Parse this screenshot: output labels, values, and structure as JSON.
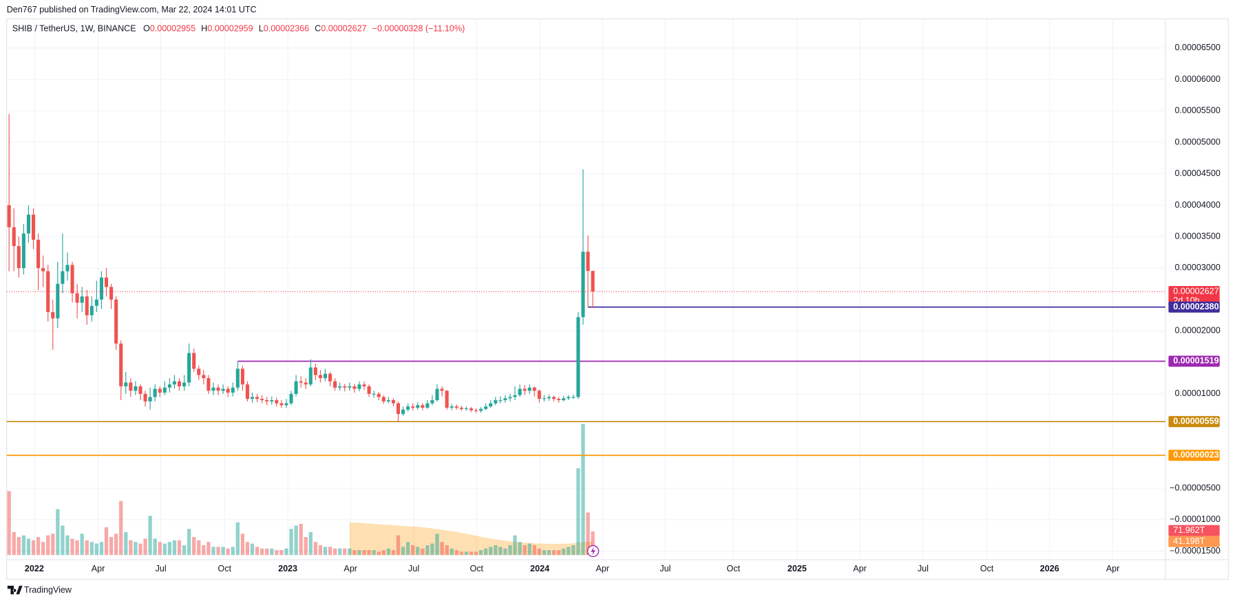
{
  "chart_data": {
    "type": "candlestick",
    "publisher": "Den767 published on TradingView.com, Mar 22, 2024 14:01 UTC",
    "title": "SHIB / TetherUS, 1W, BINANCE",
    "legend_values": [
      {
        "key": "O",
        "value": "0.00002955"
      },
      {
        "key": "H",
        "value": "0.00002959"
      },
      {
        "key": "L",
        "value": "0.00002366"
      },
      {
        "key": "C",
        "value": "0.00002627"
      }
    ],
    "change": "−0.00000328 (−11.10%)",
    "up_color": "#26a69a",
    "down_color": "#ef5350",
    "open": [
      4e-05,
      3.65e-05,
      3.35e-05,
      3e-05,
      3.55e-05,
      3.85e-05,
      3.45e-05,
      3e-05,
      2.95e-05,
      2.3e-05,
      2.2e-05,
      2.75e-05,
      2.95e-05,
      3.05e-05,
      2.6e-05,
      2.45e-05,
      2.55e-05,
      2.25e-05,
      2.4e-05,
      2.5e-05,
      2.85e-05,
      2.7e-05,
      2.5e-05,
      1.8e-05,
      1.12e-05,
      1.18e-05,
      1.05e-05,
      1.12e-05,
      1e-05,
      8.8e-06,
      9.5e-06,
      1.08e-05,
      1.02e-05,
      1.1e-05,
      1.15e-05,
      1.2e-05,
      1.12e-05,
      1.18e-05,
      1.65e-05,
      1.4e-05,
      1.3e-05,
      1.25e-05,
      1.05e-05,
      1.1e-05,
      1.05e-05,
      1.08e-05,
      1.02e-05,
      1.1e-05,
      1.4e-05,
      1.15e-05,
      9.2e-06,
      9.5e-06,
      9.2e-06,
      9e-06,
      8.8e-06,
      9e-06,
      8.5e-06,
      8.2e-06,
      8.5e-06,
      1e-05,
      1.2e-05,
      1.18e-05,
      1.15e-05,
      1.42e-05,
      1.3e-05,
      1.25e-05,
      1.32e-05,
      1.2e-05,
      1.1e-05,
      1.12e-05,
      1.1e-05,
      1.12e-05,
      1.08e-05,
      1.15e-05,
      1.12e-05,
      1e-05,
      1e-05,
      9.5e-06,
      8.8e-06,
      9e-06,
      8.5e-06,
      6.8e-06,
      7.5e-06,
      8e-06,
      7.8e-06,
      8.2e-06,
      7.8e-06,
      8.5e-06,
      9e-06,
      1.08e-05,
      1.05e-05,
      7.8e-06,
      8e-06,
      7.8e-06,
      7.6e-06,
      7.7e-06,
      7.4e-06,
      7.3e-06,
      7.6e-06,
      8e-06,
      8.5e-06,
      9e-06,
      9e-06,
      9.3e-06,
      9.5e-06,
      9.8e-06,
      1.08e-05,
      1.05e-05,
      1.1e-05,
      1.05e-05,
      9.2e-06,
      9.3e-06,
      9.5e-06,
      9.2e-06,
      9e-06,
      9.3e-06,
      9.5e-06,
      9.5e-06,
      2.22e-05,
      3.26e-05,
      2.955e-05
    ],
    "high": [
      5.45e-05,
      3.95e-05,
      3.5e-05,
      3.7e-05,
      4e-05,
      3.95e-05,
      3.55e-05,
      3.2e-05,
      3.05e-05,
      2.5e-05,
      3.1e-05,
      3.55e-05,
      3.25e-05,
      3.1e-05,
      2.75e-05,
      2.7e-05,
      2.65e-05,
      2.55e-05,
      2.8e-05,
      2.95e-05,
      3e-05,
      2.75e-05,
      2.55e-05,
      1.85e-05,
      1.35e-05,
      1.25e-05,
      1.2e-05,
      1.15e-05,
      1.05e-05,
      1.1e-05,
      1.15e-05,
      1.12e-05,
      1.2e-05,
      1.25e-05,
      1.3e-05,
      1.25e-05,
      1.3e-05,
      1.8e-05,
      1.72e-05,
      1.45e-05,
      1.38e-05,
      1.3e-05,
      1.18e-05,
      1.15e-05,
      1.15e-05,
      1.12e-05,
      1.18e-05,
      1.52e-05,
      1.45e-05,
      1.2e-05,
      1.02e-05,
      1e-05,
      9.8e-06,
      9.5e-06,
      9.6e-06,
      9.4e-06,
      9e-06,
      9.2e-06,
      1.05e-05,
      1.3e-05,
      1.28e-05,
      1.25e-05,
      1.55e-05,
      1.48e-05,
      1.38e-05,
      1.4e-05,
      1.35e-05,
      1.25e-05,
      1.18e-05,
      1.16e-05,
      1.18e-05,
      1.16e-05,
      1.2e-05,
      1.2e-05,
      1.15e-05,
      1.05e-05,
      1.03e-05,
      9.8e-06,
      9.5e-06,
      9.3e-06,
      8.8e-06,
      8e-06,
      8.5e-06,
      8.5e-06,
      8.7e-06,
      8.5e-06,
      9e-06,
      9.8e-06,
      1.15e-05,
      1.12e-05,
      1.06e-05,
      8.4e-06,
      8.3e-06,
      8.1e-06,
      8e-06,
      7.9e-06,
      7.7e-06,
      7.9e-06,
      8.5e-06,
      9e-06,
      9.5e-06,
      9.6e-06,
      9.8e-06,
      1e-05,
      1.12e-05,
      1.15e-05,
      1.14e-05,
      1.15e-05,
      1.12e-05,
      1.07e-05,
      9.8e-06,
      9.9e-06,
      9.7e-06,
      9.5e-06,
      9.7e-06,
      9.8e-06,
      9.9e-06,
      2.3e-05,
      4.57e-05,
      3.52e-05,
      2.959e-05
    ],
    "low": [
      2.95e-05,
      2.95e-05,
      2.85e-05,
      2.9e-05,
      3.4e-05,
      3.3e-05,
      2.65e-05,
      2.7e-05,
      2.15e-05,
      1.7e-05,
      2.05e-05,
      2.6e-05,
      2.8e-05,
      2.45e-05,
      2.2e-05,
      2.3e-05,
      2.1e-05,
      2.15e-05,
      2.3e-05,
      2.35e-05,
      2.55e-05,
      2.35e-05,
      1.7e-05,
      9e-06,
      1e-05,
      9.5e-06,
      9.8e-06,
      9e-06,
      8e-06,
      7.5e-06,
      8.8e-06,
      9.5e-06,
      9.8e-06,
      1.02e-05,
      1.08e-05,
      1.05e-05,
      1.05e-05,
      1.12e-05,
      1.35e-05,
      1.22e-05,
      1.15e-05,
      1e-05,
      9.8e-06,
      9.8e-06,
      1e-05,
      9.5e-06,
      9.6e-06,
      1.05e-05,
      1.05e-05,
      8.8e-06,
      8.6e-06,
      8.7e-06,
      8.5e-06,
      8.2e-06,
      8.3e-06,
      8e-06,
      7.8e-06,
      7.8e-06,
      8.2e-06,
      9.6e-06,
      1.1e-05,
      1.08e-05,
      1.12e-05,
      1.22e-05,
      1.18e-05,
      1.2e-05,
      1.12e-05,
      1.05e-05,
      1.05e-05,
      1.04e-05,
      1.05e-05,
      1.02e-05,
      1.04e-05,
      1.06e-05,
      9.5e-06,
      9.4e-06,
      9e-06,
      8.4e-06,
      8.5e-06,
      8e-06,
      5.5e-06,
      6.5e-06,
      7.2e-06,
      7.4e-06,
      7.5e-06,
      7.4e-06,
      7.6e-06,
      8.2e-06,
      8.8e-06,
      9.6e-06,
      7.5e-06,
      7.4e-06,
      7.5e-06,
      7.3e-06,
      7.3e-06,
      7.1e-06,
      7e-06,
      7e-06,
      7.4e-06,
      7.8e-06,
      8.2e-06,
      8.5e-06,
      8.6e-06,
      8.8e-06,
      9e-06,
      9.5e-06,
      9.8e-06,
      1e-05,
      9.6e-06,
      8.6e-06,
      8.8e-06,
      8.9e-06,
      8.8e-06,
      8.6e-06,
      8.8e-06,
      9e-06,
      9.2e-06,
      9.2e-06,
      2.1e-05,
      2.38e-05,
      2.366e-05
    ],
    "close": [
      3.65e-05,
      3.35e-05,
      3e-05,
      3.55e-05,
      3.85e-05,
      3.45e-05,
      3e-05,
      2.95e-05,
      2.3e-05,
      2.2e-05,
      2.75e-05,
      2.95e-05,
      3.05e-05,
      2.6e-05,
      2.45e-05,
      2.55e-05,
      2.25e-05,
      2.4e-05,
      2.5e-05,
      2.85e-05,
      2.7e-05,
      2.5e-05,
      1.8e-05,
      1.12e-05,
      1.18e-05,
      1.05e-05,
      1.12e-05,
      1e-05,
      8.8e-06,
      9.5e-06,
      1.08e-05,
      1.02e-05,
      1.1e-05,
      1.15e-05,
      1.2e-05,
      1.12e-05,
      1.18e-05,
      1.65e-05,
      1.4e-05,
      1.3e-05,
      1.25e-05,
      1.05e-05,
      1.1e-05,
      1.05e-05,
      1.08e-05,
      1.02e-05,
      1.1e-05,
      1.4e-05,
      1.15e-05,
      9.2e-06,
      9.5e-06,
      9.2e-06,
      9e-06,
      8.8e-06,
      9e-06,
      8.5e-06,
      8.2e-06,
      8.5e-06,
      1e-05,
      1.2e-05,
      1.18e-05,
      1.15e-05,
      1.42e-05,
      1.3e-05,
      1.25e-05,
      1.32e-05,
      1.2e-05,
      1.1e-05,
      1.12e-05,
      1.1e-05,
      1.12e-05,
      1.08e-05,
      1.15e-05,
      1.12e-05,
      1e-05,
      1e-05,
      9.5e-06,
      8.8e-06,
      9e-06,
      8.5e-06,
      6.8e-06,
      7.5e-06,
      8e-06,
      7.8e-06,
      8.2e-06,
      7.8e-06,
      8.5e-06,
      9e-06,
      1.08e-05,
      1.05e-05,
      7.8e-06,
      8e-06,
      7.8e-06,
      7.6e-06,
      7.7e-06,
      7.4e-06,
      7.3e-06,
      7.6e-06,
      8e-06,
      8.5e-06,
      9e-06,
      9e-06,
      9.3e-06,
      9.5e-06,
      9.8e-06,
      1.08e-05,
      1.05e-05,
      1.1e-05,
      1.05e-05,
      9.2e-06,
      9.3e-06,
      9.5e-06,
      9.2e-06,
      9e-06,
      9.3e-06,
      9.5e-06,
      9.5e-06,
      2.22e-05,
      3.26e-05,
      2.955e-05,
      2.627e-05
    ],
    "volume": [
      195,
      70,
      55,
      60,
      50,
      45,
      55,
      40,
      60,
      65,
      140,
      90,
      60,
      50,
      45,
      65,
      45,
      40,
      35,
      40,
      85,
      55,
      65,
      165,
      70,
      45,
      40,
      35,
      50,
      120,
      50,
      40,
      35,
      40,
      45,
      45,
      30,
      80,
      55,
      45,
      30,
      40,
      25,
      25,
      25,
      20,
      25,
      100,
      65,
      40,
      35,
      25,
      20,
      20,
      20,
      15,
      15,
      20,
      80,
      90,
      95,
      55,
      70,
      40,
      30,
      25,
      25,
      20,
      20,
      20,
      20,
      15,
      15,
      15,
      15,
      15,
      10,
      15,
      20,
      15,
      60,
      25,
      40,
      30,
      25,
      20,
      30,
      35,
      65,
      40,
      30,
      20,
      15,
      10,
      10,
      10,
      10,
      15,
      20,
      25,
      30,
      25,
      20,
      30,
      60,
      40,
      30,
      35,
      30,
      20,
      15,
      15,
      15,
      15,
      20,
      25,
      30,
      265,
      400,
      130,
      71.962
    ],
    "volume_ma": [
      null,
      null,
      null,
      null,
      null,
      null,
      null,
      null,
      null,
      null,
      null,
      null,
      null,
      null,
      null,
      null,
      null,
      null,
      null,
      null,
      null,
      null,
      null,
      null,
      null,
      null,
      null,
      null,
      null,
      null,
      null,
      null,
      null,
      null,
      null,
      null,
      null,
      null,
      null,
      null,
      null,
      null,
      null,
      null,
      null,
      null,
      null,
      null,
      null,
      null,
      null,
      null,
      null,
      null,
      null,
      null,
      null,
      null,
      null,
      null,
      null,
      null,
      null,
      null,
      null,
      null,
      null,
      null,
      null,
      null,
      100,
      99,
      98,
      97,
      96,
      95,
      94,
      93,
      92,
      91,
      90,
      89,
      88,
      87,
      86,
      85,
      83,
      81,
      79,
      77,
      75,
      73,
      71,
      68,
      65,
      62,
      59,
      56,
      53,
      50,
      48,
      46,
      44,
      42,
      40,
      39,
      38,
      37,
      36,
      35,
      35,
      34,
      34,
      34,
      35,
      35,
      36,
      38,
      40,
      41,
      41.198
    ],
    "volume_last_label": "71.962T",
    "volume_ma_last_label": "41.198T",
    "ylim": [
      -1.6375e-05,
      6.9625e-05
    ],
    "yticks": [
      {
        "value": 6.5e-05,
        "label": "0.00006500"
      },
      {
        "value": 6e-05,
        "label": "0.00006000"
      },
      {
        "value": 5.5e-05,
        "label": "0.00005500"
      },
      {
        "value": 5e-05,
        "label": "0.00005000"
      },
      {
        "value": 4.5e-05,
        "label": "0.00004500"
      },
      {
        "value": 4e-05,
        "label": "0.00004000"
      },
      {
        "value": 3.5e-05,
        "label": "0.00003500"
      },
      {
        "value": 3e-05,
        "label": "0.00003000"
      },
      {
        "value": 2e-05,
        "label": "0.00002000"
      },
      {
        "value": 1e-05,
        "label": "0.00001000"
      },
      {
        "value": -5e-06,
        "label": "−0.00000500"
      },
      {
        "value": -1e-05,
        "label": "−0.00001000"
      },
      {
        "value": -1.5e-05,
        "label": "−0.00001500"
      }
    ],
    "xlim": [
      -0.49,
      237.7
    ],
    "xticks": [
      {
        "value": 5.2,
        "label": "2022"
      },
      {
        "value": 18.3,
        "label": "Apr"
      },
      {
        "value": 31.2,
        "label": "Jul"
      },
      {
        "value": 44.3,
        "label": "Oct"
      },
      {
        "value": 57.3,
        "label": "2023"
      },
      {
        "value": 70.2,
        "label": "Apr"
      },
      {
        "value": 83.2,
        "label": "Jul"
      },
      {
        "value": 96.1,
        "label": "Oct"
      },
      {
        "value": 109.1,
        "label": "2024"
      },
      {
        "value": 122.0,
        "label": "Apr"
      },
      {
        "value": 134.9,
        "label": "Jul"
      },
      {
        "value": 148.9,
        "label": "Oct"
      },
      {
        "value": 162,
        "label": "2025"
      },
      {
        "value": 174.9,
        "label": "Apr"
      },
      {
        "value": 187.9,
        "label": "Jul"
      },
      {
        "value": 201,
        "label": "Oct"
      },
      {
        "value": 213.9,
        "label": "2026"
      },
      {
        "value": 226.9,
        "label": "Apr"
      }
    ],
    "grid": true,
    "levels": [
      {
        "value": 2.38e-05,
        "label": "0.00002380",
        "color": "#3f2c9c"
      },
      {
        "value": 1.519e-05,
        "label": "0.00001519",
        "color": "#9c27b0"
      },
      {
        "value": 5.59e-06,
        "label": "0.00000559",
        "color": "#c98a0c"
      },
      {
        "value": 2.3e-07,
        "label": "0.00000023",
        "color": "#ff9800"
      }
    ],
    "current_price_label": "0.00002627",
    "countdown": "2d 10h",
    "brand": "TradingView"
  }
}
